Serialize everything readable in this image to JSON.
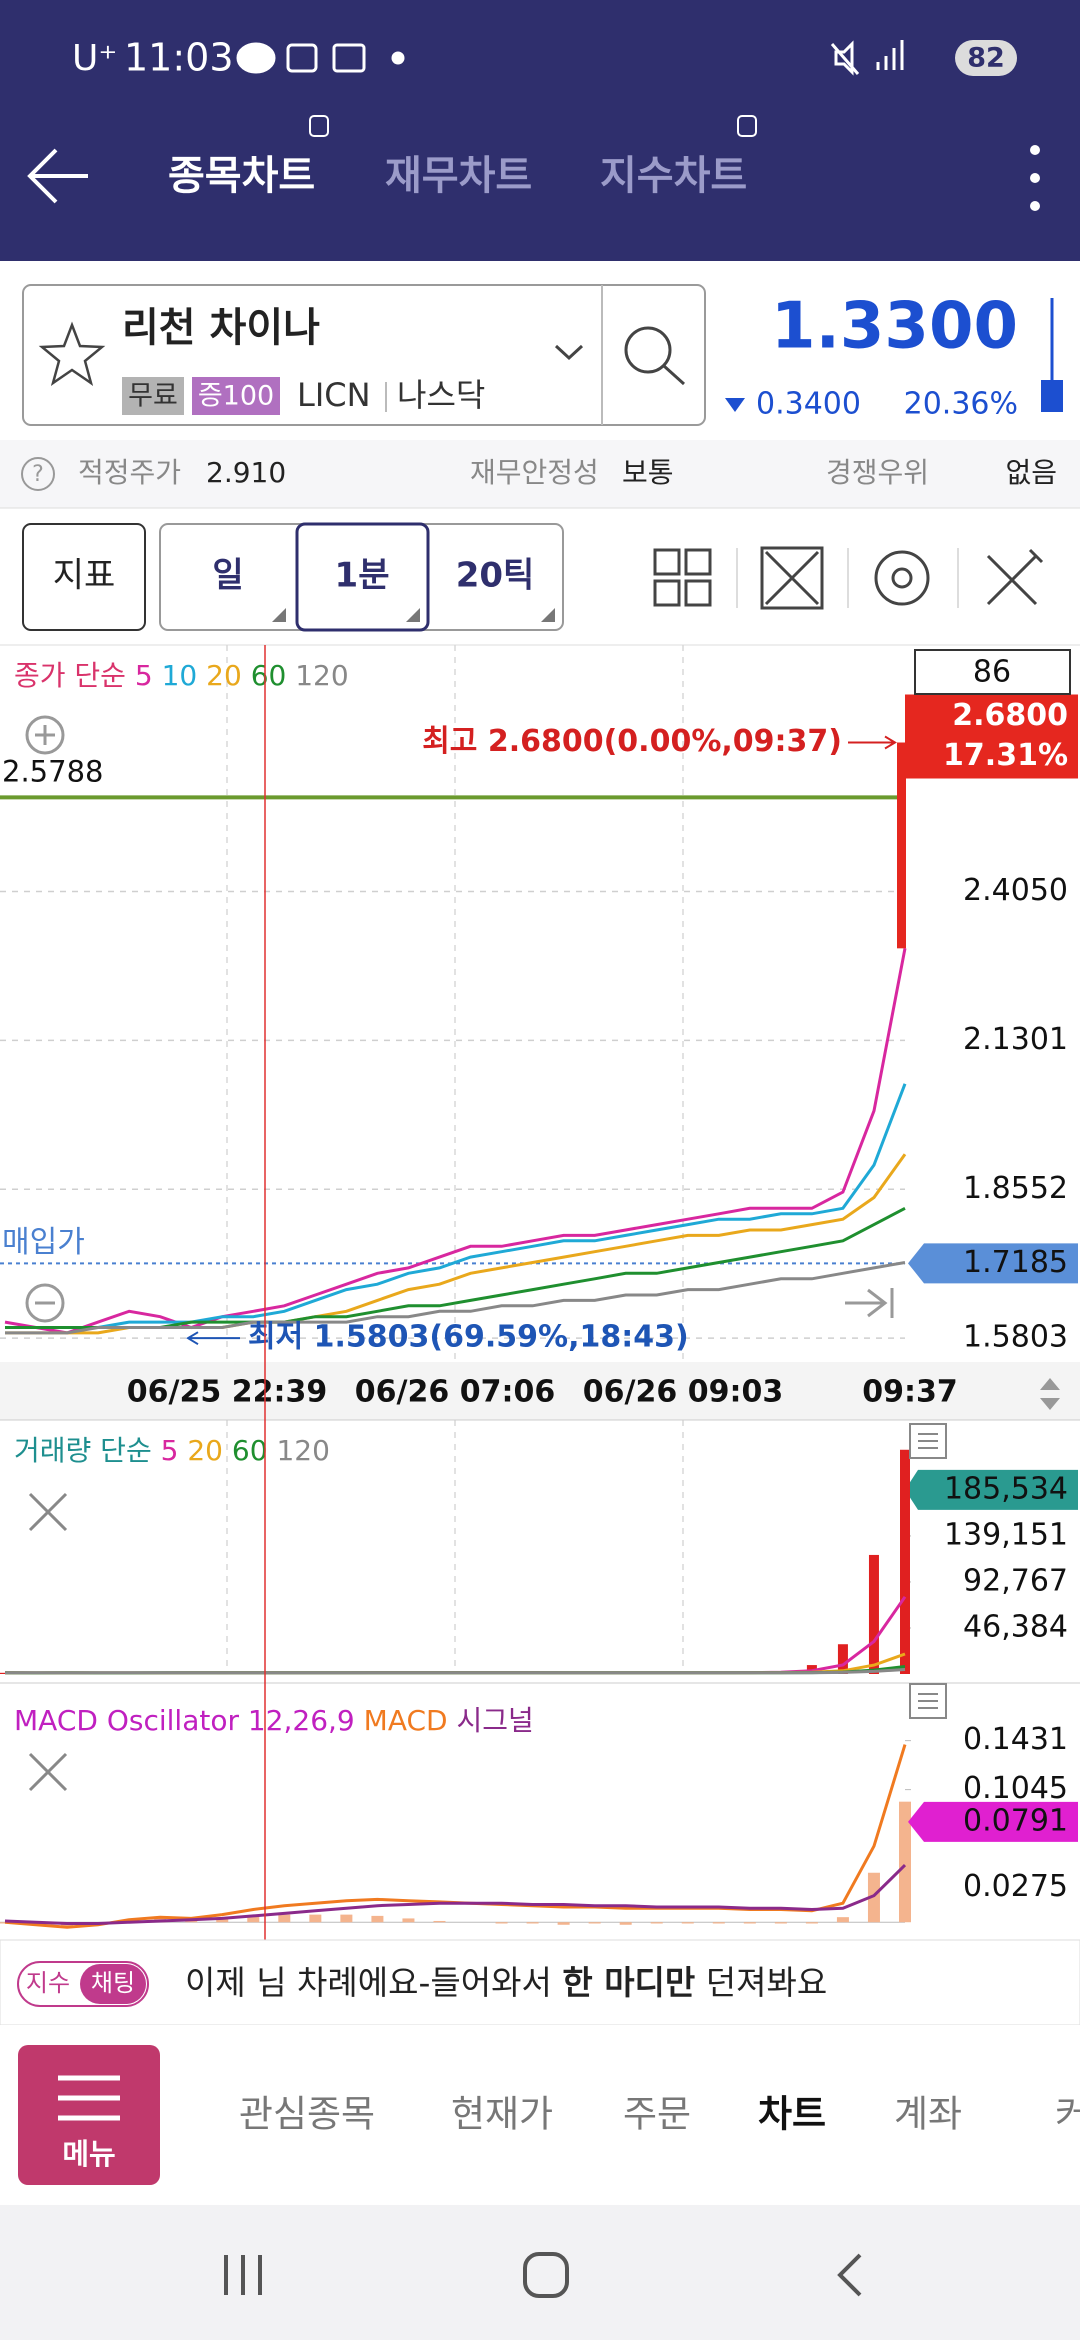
{
  "status_bar": {
    "carrier": "U⁺",
    "time": "11:03",
    "battery": "82"
  },
  "tabs": [
    "종목차트",
    "재무차트",
    "지수차트"
  ],
  "stock": {
    "name": "리천 차이나",
    "badges": [
      "무료",
      "증100"
    ],
    "ticker": "LICN",
    "exchange": "나스닥",
    "price": "1.3300",
    "change": "0.3400",
    "change_pct": "20.36%"
  },
  "info": {
    "fair_price_label": "적정주가",
    "fair_price": "2.910",
    "stability_label": "재무안정성",
    "stability": "보통",
    "competitive_label": "경쟁우위",
    "competitive": "없음"
  },
  "toolbar": {
    "indicator": "지표",
    "periods": [
      "일",
      "1분",
      "20틱"
    ]
  },
  "chart_data": [
    {
      "type": "line",
      "title": "종가 단순",
      "grid": true,
      "series": [
        {
          "name": "5",
          "color": "#d8279f",
          "values": [
            1.61,
            1.6,
            1.59,
            1.61,
            1.63,
            1.62,
            1.6,
            1.62,
            1.63,
            1.64,
            1.66,
            1.68,
            1.7,
            1.71,
            1.73,
            1.75,
            1.75,
            1.76,
            1.77,
            1.77,
            1.78,
            1.79,
            1.8,
            1.81,
            1.82,
            1.82,
            1.82,
            1.85,
            2.0,
            2.3
          ]
        },
        {
          "name": "10",
          "color": "#1fa9d6",
          "values": [
            1.6,
            1.6,
            1.6,
            1.6,
            1.61,
            1.61,
            1.61,
            1.62,
            1.62,
            1.63,
            1.65,
            1.67,
            1.68,
            1.7,
            1.71,
            1.73,
            1.74,
            1.75,
            1.76,
            1.76,
            1.77,
            1.78,
            1.79,
            1.8,
            1.8,
            1.81,
            1.81,
            1.82,
            1.9,
            2.05
          ]
        },
        {
          "name": "20",
          "color": "#e9a81c",
          "values": [
            1.59,
            1.59,
            1.59,
            1.59,
            1.6,
            1.6,
            1.6,
            1.6,
            1.61,
            1.61,
            1.62,
            1.63,
            1.65,
            1.67,
            1.68,
            1.7,
            1.71,
            1.72,
            1.73,
            1.74,
            1.75,
            1.76,
            1.77,
            1.77,
            1.78,
            1.78,
            1.79,
            1.8,
            1.84,
            1.92
          ]
        },
        {
          "name": "60",
          "color": "#1f8f2f",
          "values": [
            1.6,
            1.6,
            1.6,
            1.6,
            1.6,
            1.6,
            1.61,
            1.61,
            1.61,
            1.61,
            1.62,
            1.62,
            1.63,
            1.64,
            1.64,
            1.65,
            1.66,
            1.67,
            1.68,
            1.69,
            1.7,
            1.7,
            1.71,
            1.72,
            1.73,
            1.74,
            1.75,
            1.76,
            1.79,
            1.82
          ]
        },
        {
          "name": "120",
          "color": "#888888",
          "values": [
            1.59,
            1.59,
            1.59,
            1.6,
            1.6,
            1.6,
            1.6,
            1.6,
            1.61,
            1.61,
            1.61,
            1.61,
            1.62,
            1.62,
            1.63,
            1.63,
            1.64,
            1.64,
            1.65,
            1.65,
            1.66,
            1.66,
            1.67,
            1.67,
            1.68,
            1.69,
            1.69,
            1.7,
            1.71,
            1.72
          ]
        }
      ],
      "ylim": [
        1.54,
        2.86
      ],
      "yticks": [
        {
          "value": 2.405,
          "label": "2.4050"
        },
        2.1301,
        1.8552,
        1.5803
      ],
      "x_axis_labels": [
        "06/25 22:39",
        "06/26 07:06",
        "06/26 09:03",
        "09:37"
      ],
      "count": 86,
      "high": {
        "value": 2.68,
        "label": "2.6800"
      },
      "high_pct": "17.31%",
      "high_annotation": "최고 2.6800(0.00%,09:37)",
      "low_annotation": "최저 1.5803(69.59%,18:43)",
      "reference_line": 2.5788,
      "entry_price_label": "매입가",
      "entry_price": 1.7185
    },
    {
      "type": "bar",
      "title": "거래량 단순",
      "color": "#e02020",
      "grid": false,
      "values": [
        1200,
        900,
        1500,
        800,
        1100,
        1300,
        2000,
        900,
        1000,
        1400,
        1200,
        1600,
        1800,
        1300,
        1100,
        1500,
        1200,
        1400,
        1000,
        1300,
        1600,
        1200,
        1100,
        1500,
        1800,
        3000,
        9000,
        30000,
        120000,
        226000
      ],
      "series": [
        {
          "name": "5",
          "color": "#d8279f",
          "values": [
            1200,
            1100,
            1150,
            1100,
            1100,
            1120,
            1340,
            1220,
            1260,
            1320,
            1300,
            1220,
            1400,
            1460,
            1400,
            1440,
            1380,
            1400,
            1280,
            1300,
            1340,
            1300,
            1240,
            1340,
            1440,
            1720,
            3280,
            9080,
            32860,
            77800
          ]
        },
        {
          "name": "20",
          "color": "#e9a81c",
          "values": [
            1200,
            1100,
            1200,
            1100,
            1100,
            1130,
            1260,
            1220,
            1230,
            1260,
            1250,
            1280,
            1320,
            1310,
            1300,
            1320,
            1310,
            1320,
            1280,
            1300,
            1310,
            1320,
            1300,
            1320,
            1350,
            1440,
            1800,
            3200,
            9000,
            20200
          ]
        },
        {
          "name": "60",
          "color": "#1f8f2f",
          "values": [
            1200,
            1150,
            1200,
            1150,
            1150,
            1170,
            1200,
            1190,
            1200,
            1210,
            1210,
            1230,
            1250,
            1250,
            1250,
            1260,
            1260,
            1270,
            1260,
            1270,
            1280,
            1280,
            1280,
            1290,
            1300,
            1330,
            1450,
            1950,
            3900,
            7600
          ]
        },
        {
          "name": "120",
          "color": "#888888",
          "values": [
            1200,
            1180,
            1200,
            1180,
            1180,
            1190,
            1200,
            1200,
            1200,
            1210,
            1210,
            1220,
            1230,
            1230,
            1230,
            1240,
            1240,
            1250,
            1250,
            1250,
            1260,
            1260,
            1260,
            1270,
            1270,
            1290,
            1350,
            1600,
            2600,
            4500
          ]
        }
      ],
      "ylim": [
        0,
        256000
      ],
      "yticks": [
        {
          "value": 185534,
          "label": "185,534"
        },
        {
          "value": 139151,
          "label": "139,151"
        },
        {
          "value": 92767,
          "label": "92,767"
        },
        {
          "value": 46384,
          "label": "46,384"
        }
      ]
    },
    {
      "type": "macd",
      "title": "MACD Oscillator 12,26,9",
      "grid": false,
      "oscillator": {
        "color": "#f4b48e",
        "values": [
          -0.001,
          -0.002,
          -0.003,
          -0.001,
          0.002,
          0.003,
          0.001,
          0.003,
          0.005,
          0.006,
          0.006,
          0.006,
          0.005,
          0.003,
          0.001,
          0.0,
          -0.001,
          -0.001,
          -0.002,
          -0.001,
          -0.002,
          -0.001,
          -0.001,
          -0.001,
          -0.001,
          -0.001,
          -0.001,
          0.004,
          0.039,
          0.095
        ]
      },
      "series": [
        {
          "name": "MACD",
          "color": "#f07a20",
          "values": [
            0.0,
            -0.002,
            -0.004,
            -0.002,
            0.002,
            0.004,
            0.003,
            0.006,
            0.01,
            0.013,
            0.015,
            0.017,
            0.018,
            0.017,
            0.016,
            0.015,
            0.014,
            0.013,
            0.012,
            0.012,
            0.011,
            0.011,
            0.011,
            0.011,
            0.01,
            0.01,
            0.009,
            0.015,
            0.06,
            0.14
          ]
        },
        {
          "name": "시그널",
          "color": "#8a2a8a",
          "values": [
            0.001,
            0.0,
            -0.001,
            -0.001,
            0.0,
            0.001,
            0.002,
            0.003,
            0.005,
            0.007,
            0.009,
            0.011,
            0.013,
            0.014,
            0.015,
            0.015,
            0.015,
            0.014,
            0.014,
            0.013,
            0.013,
            0.012,
            0.012,
            0.012,
            0.011,
            0.011,
            0.01,
            0.011,
            0.021,
            0.045
          ]
        }
      ],
      "ylim": [
        -0.014,
        0.183
      ],
      "yticks": [
        0.1431,
        0.1045,
        0.0275
      ],
      "current": 0.0791
    }
  ],
  "chat": {
    "tags": [
      "지수",
      "채팅"
    ],
    "message_pre": "이제 님 차례에요-들어와서 ",
    "message_bold": "한 마디만",
    "message_post": " 던져봐요"
  },
  "nav": {
    "menu": "메뉴",
    "items": [
      "관심종목",
      "현재가",
      "주문",
      "차트",
      "계좌",
      "커"
    ]
  }
}
